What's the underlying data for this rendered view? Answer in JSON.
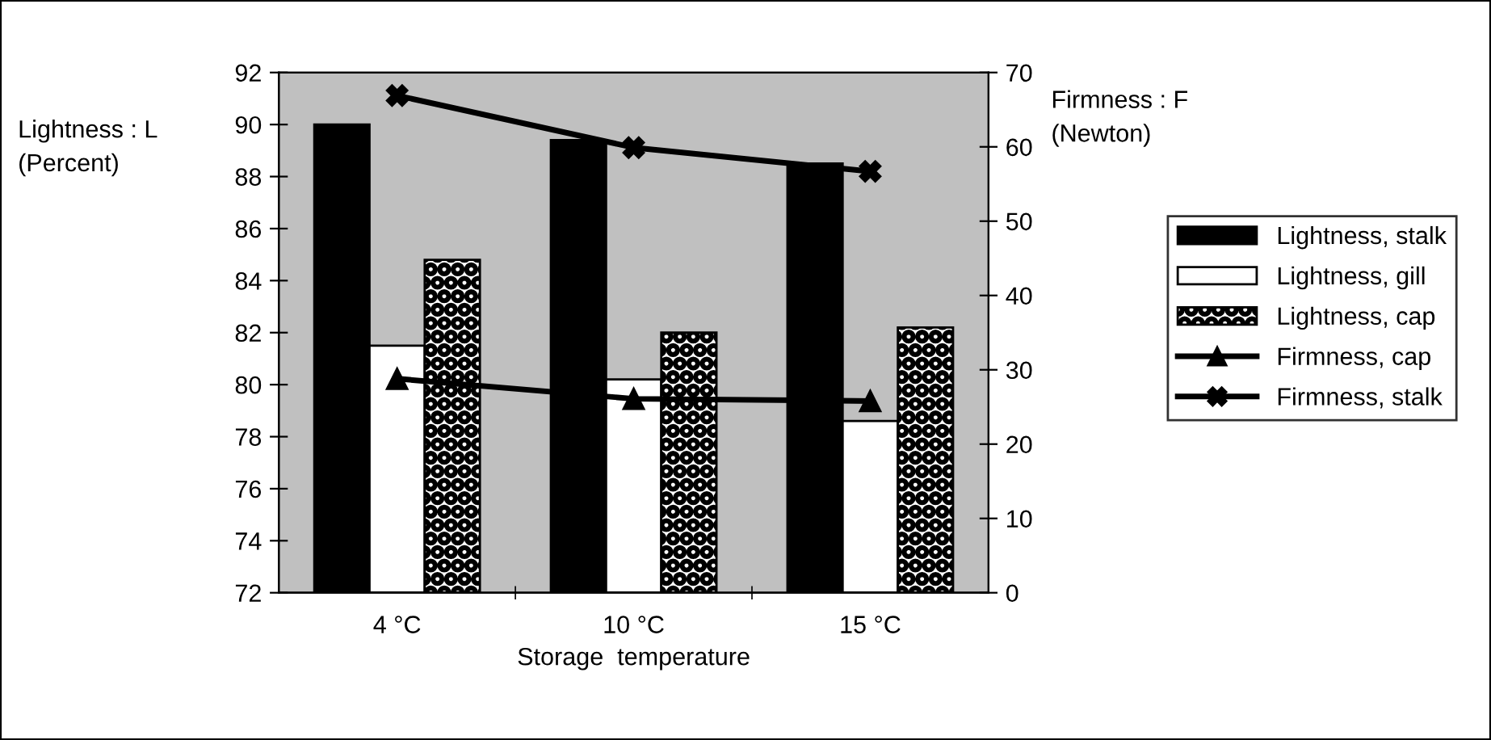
{
  "chart_data": {
    "type": "bar",
    "xlabel": "Storage  temperature",
    "ylabel": "Lightness : L\n(Percent)",
    "y2label": "Firmness : F\n(Newton)",
    "categories": [
      "4 °C",
      "10 °C",
      "15 °C"
    ],
    "series": [
      {
        "name": "Lightness, stalk",
        "color": "#000000",
        "values": [
          90.0,
          89.4,
          88.5
        ]
      },
      {
        "name": "Lightness, gill",
        "color": "#ffffff",
        "values": [
          81.5,
          80.2,
          78.6
        ]
      },
      {
        "name": "Lightness, cap",
        "color": "#000000",
        "values": [
          84.8,
          82.0,
          82.2
        ]
      },
      {
        "name": "Firmness, cap",
        "type": "line",
        "axis": "y2",
        "marker": "triangle",
        "color": "#000000",
        "values": [
          28.8,
          26.1,
          25.8
        ]
      },
      {
        "name": "Firmness, stalk",
        "type": "line",
        "axis": "y2",
        "marker": "cross",
        "color": "#000000",
        "values": [
          66.9,
          59.9,
          56.7
        ]
      }
    ],
    "ylim": [
      72,
      92
    ],
    "yticks": [
      72,
      74,
      76,
      78,
      80,
      82,
      84,
      86,
      88,
      90,
      92
    ],
    "y2lim": [
      0,
      70
    ],
    "y2ticks": [
      0,
      10,
      20,
      30,
      40,
      50,
      60,
      70
    ],
    "grid": false,
    "legend": "right"
  }
}
